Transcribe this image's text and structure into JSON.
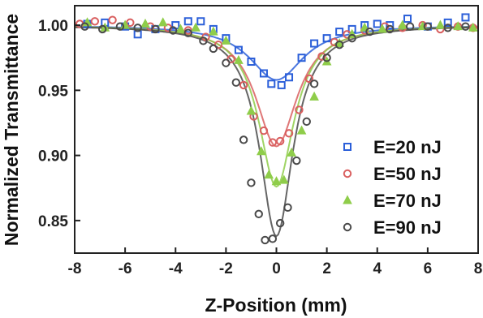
{
  "chart_data": {
    "type": "scatter",
    "xlabel": "Z-Position (mm)",
    "ylabel": "Normalized Transmittance",
    "xlim": [
      -8,
      8
    ],
    "ylim": [
      0.825,
      1.015
    ],
    "xticks": [
      "-8",
      "-6",
      "-4",
      "-2",
      "0",
      "2",
      "4",
      "6",
      "8"
    ],
    "yticks": [
      "0.85",
      "0.90",
      "0.95",
      "1.00"
    ],
    "legend_position": "lower-right",
    "series": [
      {
        "name": "E=20 nJ",
        "marker": "square",
        "color": "#2b5fd9",
        "min": 0.958,
        "width": 1.3,
        "x": [
          -7.5,
          -6.8,
          -6.0,
          -5.5,
          -4.8,
          -4.0,
          -3.5,
          -3.0,
          -2.5,
          -2.0,
          -1.5,
          -1.0,
          -0.5,
          -0.2,
          0.2,
          0.5,
          1.0,
          1.5,
          2.0,
          2.5,
          3.0,
          3.5,
          4.0,
          4.5,
          5.2,
          6.0,
          6.8,
          7.5
        ],
        "y": [
          1.001,
          1.002,
          0.999,
          0.993,
          0.997,
          1.0,
          1.003,
          1.003,
          0.997,
          0.99,
          0.981,
          0.972,
          0.963,
          0.955,
          0.954,
          0.96,
          0.975,
          0.986,
          0.99,
          0.995,
          0.997,
          1.0,
          1.001,
          1.0,
          1.005,
          0.999,
          1.002,
          1.006
        ]
      },
      {
        "name": "E=50 nJ",
        "marker": "circle",
        "color": "#d95f5f",
        "min": 0.907,
        "width": 1.0,
        "x": [
          -7.8,
          -7.2,
          -6.5,
          -5.8,
          -5.0,
          -4.3,
          -3.5,
          -2.8,
          -2.3,
          -1.8,
          -1.3,
          -0.9,
          -0.5,
          -0.15,
          0.15,
          0.5,
          0.9,
          1.3,
          1.8,
          2.3,
          2.8,
          3.5,
          4.3,
          5.0,
          5.8,
          6.5,
          7.2,
          7.8
        ],
        "y": [
          1.001,
          1.003,
          1.004,
          1.002,
          0.999,
          0.998,
          0.996,
          0.991,
          0.985,
          0.974,
          0.954,
          0.93,
          0.919,
          0.91,
          0.911,
          0.917,
          0.935,
          0.959,
          0.976,
          0.987,
          0.993,
          0.996,
          0.999,
          0.998,
          1.0,
          0.997,
          0.999,
          0.998
        ]
      },
      {
        "name": "E=70 nJ",
        "marker": "triangle",
        "color": "#8fcd4a",
        "min": 0.876,
        "width": 0.85,
        "x": [
          -7.5,
          -6.8,
          -6.0,
          -5.2,
          -4.5,
          -3.8,
          -3.2,
          -2.5,
          -2.0,
          -1.5,
          -1.0,
          -0.6,
          -0.3,
          0.0,
          0.3,
          0.6,
          1.0,
          1.5,
          2.0,
          2.5,
          3.0,
          3.5,
          4.2,
          5.0,
          5.8,
          6.5,
          7.2,
          7.8
        ],
        "y": [
          1.002,
          0.998,
          1.0,
          1.001,
          1.002,
          0.997,
          0.998,
          0.995,
          0.988,
          0.973,
          0.934,
          0.903,
          0.885,
          0.88,
          0.881,
          0.902,
          0.919,
          0.945,
          0.972,
          0.986,
          0.993,
          0.998,
          0.997,
          1.0,
          0.999,
          1.0,
          0.999,
          0.998
        ]
      },
      {
        "name": "E=90 nJ",
        "marker": "circle",
        "color": "#4a4a4a",
        "min": 0.838,
        "width": 0.8,
        "x": [
          -7.6,
          -6.9,
          -6.2,
          -5.5,
          -4.8,
          -4.1,
          -3.5,
          -2.9,
          -2.5,
          -2.0,
          -1.6,
          -1.3,
          -1.0,
          -0.7,
          -0.45,
          -0.15,
          0.15,
          0.45,
          0.8,
          1.2,
          1.5,
          2.0,
          2.5,
          3.0,
          3.7,
          4.5,
          5.3,
          6.0,
          6.8,
          7.5
        ],
        "y": [
          0.999,
          0.997,
          0.999,
          0.998,
          0.997,
          0.996,
          0.994,
          0.988,
          0.982,
          0.971,
          0.956,
          0.912,
          0.879,
          0.855,
          0.835,
          0.836,
          0.848,
          0.86,
          0.896,
          0.926,
          0.955,
          0.975,
          0.985,
          0.99,
          0.995,
          0.997,
          0.999,
          0.999,
          0.998,
          0.999
        ]
      }
    ]
  }
}
